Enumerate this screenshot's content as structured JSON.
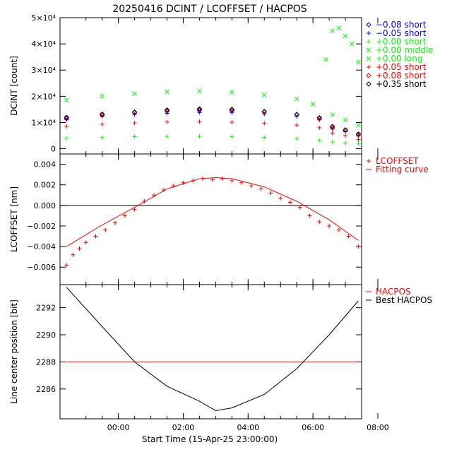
{
  "title": "20250416 DCINT / LCOFFSET / HACPOS",
  "xlabel": "Start Time (15-Apr-25 23:00:00)",
  "chart_data": [
    {
      "type": "scatter",
      "ylabel": "DCINT [count]",
      "ylim": [
        -2000,
        50000
      ],
      "ytick_labels": [
        "0",
        "1×10⁴",
        "2×10⁴",
        "3×10⁴",
        "4×10⁴",
        "5×10⁴"
      ],
      "xlim": [
        -0.8,
        8.5
      ],
      "xticks": [
        1,
        3,
        5,
        7,
        9
      ],
      "xtick_labels": [
        "00:00",
        "02:00",
        "04:00",
        "06:00",
        "08:00"
      ],
      "series": [
        {
          "name": "−0.08 short",
          "marker": "diamond",
          "color": "#0000ff",
          "x": [
            -0.6,
            0.5,
            1.5,
            2.5,
            3.5,
            4.5,
            5.5,
            6.5,
            7.2,
            7.6,
            8.0,
            8.4
          ],
          "y": [
            12000,
            13000,
            13800,
            14300,
            14600,
            14500,
            14000,
            13000,
            11500,
            8000,
            7000,
            5500
          ]
        },
        {
          "name": "−0.05 short",
          "marker": "plus",
          "color": "#0000ff",
          "x": [
            -0.6,
            0.5,
            1.5,
            2.5,
            3.5,
            4.5,
            5.5,
            6.5,
            7.2,
            7.6,
            8.0,
            8.4
          ],
          "y": [
            11000,
            12200,
            13000,
            13500,
            13800,
            13700,
            13200,
            12300,
            11000,
            7500,
            6500,
            5000
          ]
        },
        {
          "name": "+0.00 short",
          "marker": "plus",
          "color": "#00ff00",
          "x": [
            -0.6,
            0.5,
            1.5,
            2.5,
            3.5,
            4.5,
            5.5,
            6.5,
            7.2,
            7.6,
            8.0,
            8.4
          ],
          "y": [
            4000,
            4300,
            4600,
            4700,
            4700,
            4600,
            4300,
            3900,
            3200,
            2500,
            2200,
            2000
          ]
        },
        {
          "name": "+0.00 middle",
          "marker": "cross",
          "color": "#00ff00",
          "x": [
            7.4,
            7.6,
            7.8,
            8.0,
            8.2,
            8.4
          ],
          "y": [
            34000,
            45000,
            46000,
            43000,
            40000,
            33000
          ]
        },
        {
          "name": "+0.00 long",
          "marker": "cross",
          "color": "#00ff00",
          "x": [
            -0.6,
            0.5,
            1.5,
            2.5,
            3.5,
            4.5,
            5.5,
            6.5,
            7.0,
            7.6,
            8.0,
            8.4
          ],
          "y": [
            18500,
            20000,
            21000,
            21700,
            22000,
            21500,
            20500,
            19000,
            17000,
            13000,
            11000,
            9000
          ]
        },
        {
          "name": "+0.05 short",
          "marker": "plus",
          "color": "#ff0000",
          "x": [
            -0.6,
            0.5,
            1.5,
            2.5,
            3.5,
            4.5,
            5.5,
            6.5,
            7.2,
            7.6,
            8.0,
            8.4
          ],
          "y": [
            8500,
            9300,
            9800,
            10200,
            10300,
            10100,
            9700,
            9000,
            8000,
            6000,
            5000,
            3500
          ]
        },
        {
          "name": "+0.08 short",
          "marker": "diamond",
          "color": "#ff0000",
          "x": [
            -0.6,
            0.5,
            1.5,
            2.5,
            3.5,
            4.5,
            5.5,
            6.5,
            7.2,
            7.6,
            8.0,
            8.4
          ],
          "y": [
            11500,
            12800,
            13800,
            14500,
            14900,
            14700,
            14000,
            13000,
            11500,
            8000,
            7000,
            5200
          ]
        },
        {
          "name": "+0.35 short",
          "marker": "diamond",
          "color": "#000000",
          "x": [
            -0.6,
            0.5,
            1.5,
            2.5,
            3.5,
            4.5,
            5.5,
            6.5,
            7.2,
            7.6,
            8.0,
            8.4
          ],
          "y": [
            11800,
            13200,
            14000,
            14800,
            15200,
            15000,
            14200,
            13100,
            11800,
            8500,
            7200,
            5600
          ]
        }
      ]
    },
    {
      "type": "scatter",
      "ylabel": "LCOFFSET [nm]",
      "ylim": [
        -0.0077,
        0.005
      ],
      "yticks": [
        -0.006,
        -0.004,
        -0.002,
        0.0,
        0.002,
        0.004
      ],
      "ytick_labels": [
        "−0.006",
        "−0.004",
        "−0.002",
        "0.000",
        "0.002",
        "0.004"
      ],
      "hline": 0.0,
      "series": [
        {
          "name": "LCOFFSET",
          "marker": "plus",
          "color": "#ff0000",
          "x": [
            -0.6,
            -0.4,
            -0.2,
            0.0,
            0.3,
            0.6,
            0.9,
            1.2,
            1.5,
            1.8,
            2.1,
            2.4,
            2.7,
            3.0,
            3.3,
            3.6,
            3.9,
            4.2,
            4.5,
            4.8,
            5.1,
            5.4,
            5.7,
            6.0,
            6.3,
            6.6,
            6.9,
            7.2,
            7.5,
            7.8,
            8.1,
            8.4
          ],
          "y": [
            -0.0058,
            -0.0048,
            -0.0042,
            -0.0036,
            -0.003,
            -0.0024,
            -0.0017,
            -0.001,
            -0.0004,
            0.0004,
            0.001,
            0.0015,
            0.0019,
            0.0022,
            0.0024,
            0.0026,
            0.0025,
            0.0026,
            0.0024,
            0.0022,
            0.0019,
            0.0016,
            0.0012,
            0.0007,
            0.0003,
            -0.0002,
            -0.001,
            -0.0016,
            -0.002,
            -0.0024,
            -0.003,
            -0.004
          ]
        },
        {
          "name": "Fitting curve",
          "marker": "line",
          "color": "#ff0000",
          "x": [
            -0.6,
            0.5,
            1.5,
            2.5,
            3.5,
            4.0,
            4.5,
            5.5,
            6.5,
            7.5,
            8.4
          ],
          "y": [
            -0.004,
            -0.0019,
            -0.0002,
            0.0016,
            0.0026,
            0.0027,
            0.0026,
            0.0018,
            0.0004,
            -0.0014,
            -0.0034
          ]
        }
      ]
    },
    {
      "type": "line",
      "ylabel": "Line center position [bit]",
      "ylim": [
        2283.8,
        2293.7
      ],
      "yticks": [
        2286,
        2288,
        2290,
        2292
      ],
      "ytick_labels": [
        "2286",
        "2288",
        "2290",
        "2292"
      ],
      "series": [
        {
          "name": "HACPOS",
          "color": "#ff0000",
          "x": [
            -0.6,
            8.4
          ],
          "y": [
            2288,
            2288
          ]
        },
        {
          "name": "Best HACPOS",
          "color": "#000000",
          "x": [
            -0.6,
            0.5,
            1.5,
            2.5,
            3.5,
            4.0,
            4.5,
            5.5,
            6.5,
            7.5,
            8.4
          ],
          "y": [
            2293.5,
            2290.6,
            2288.0,
            2286.2,
            2285.1,
            2284.4,
            2284.6,
            2285.6,
            2287.5,
            2290.0,
            2292.5
          ]
        }
      ]
    }
  ]
}
